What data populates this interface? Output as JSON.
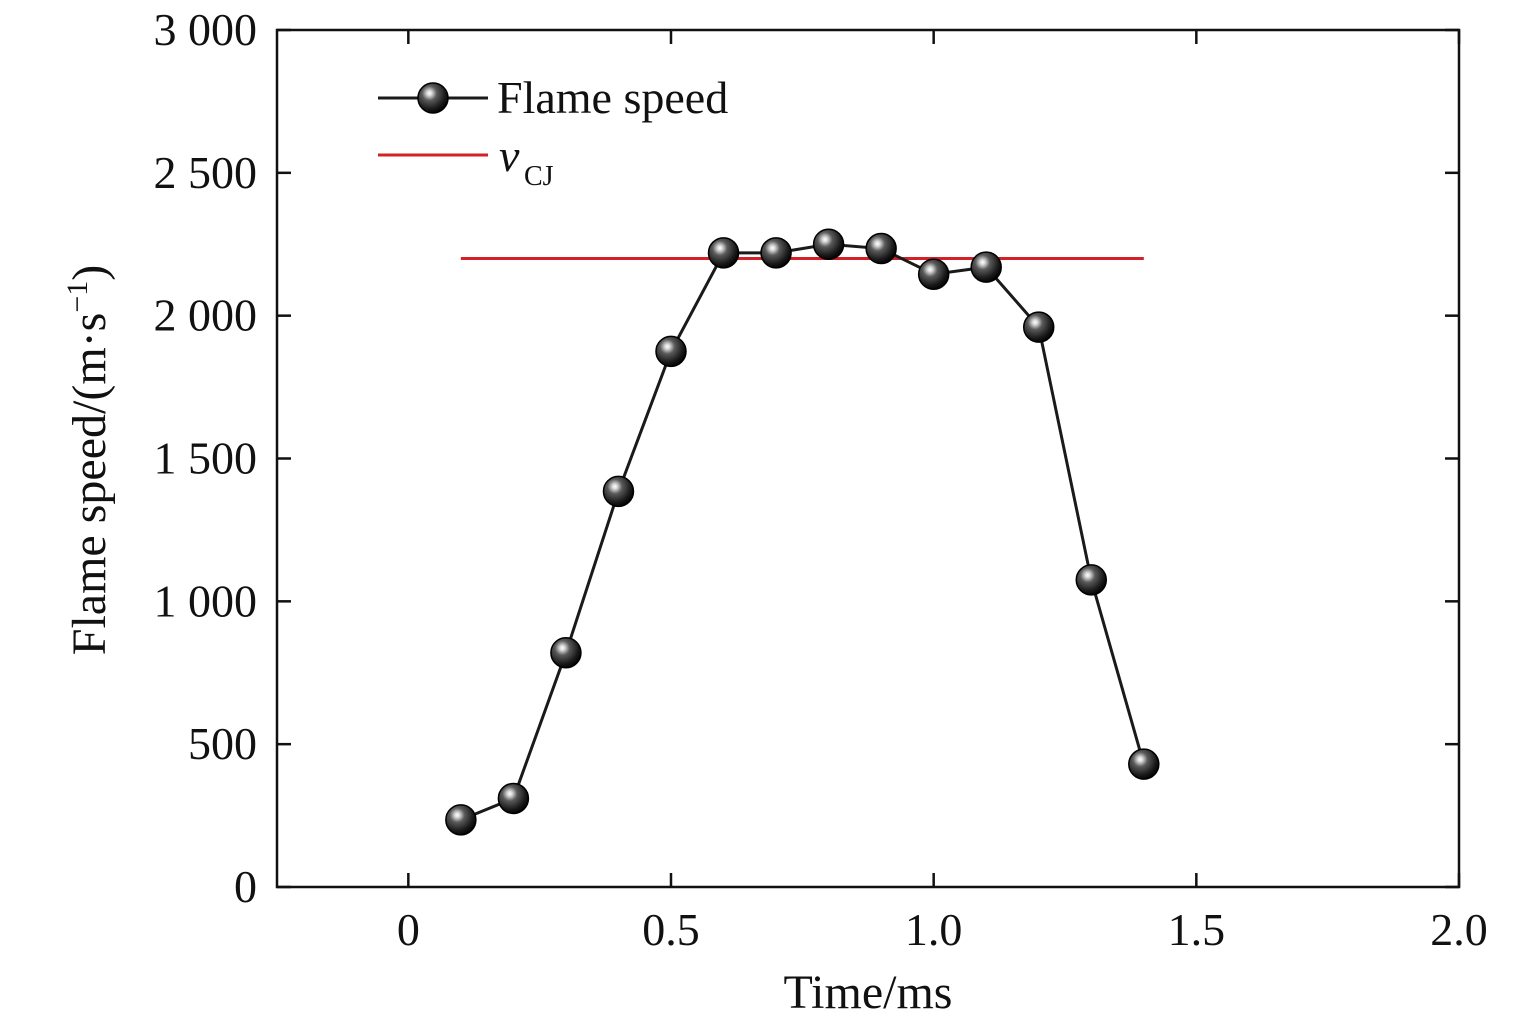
{
  "chart_data": {
    "type": "line",
    "title": "",
    "xlabel": "Time/ms",
    "ylabel": "Flame speed/(m·s",
    "ylabel_sup": "−1",
    "ylabel_close": ")",
    "xlim": [
      -0.25,
      2.0
    ],
    "ylim": [
      0,
      3000
    ],
    "xticks": [
      0,
      0.5,
      1.0,
      1.5,
      2.0
    ],
    "xtick_labels": [
      "0",
      "0.5",
      "1.0",
      "1.5",
      "2.0"
    ],
    "yticks": [
      0,
      500,
      1000,
      1500,
      2000,
      2500,
      3000
    ],
    "ytick_labels": [
      "0",
      "500",
      "1 000",
      "1 500",
      "2 000",
      "2 500",
      "3 000"
    ],
    "grid": false,
    "legend_position": "top-left",
    "series": [
      {
        "name": "Flame speed",
        "color": "#1a1a1a",
        "marker": "sphere",
        "x": [
          0.1,
          0.2,
          0.3,
          0.4,
          0.5,
          0.6,
          0.7,
          0.8,
          0.9,
          1.0,
          1.1,
          1.2,
          1.3,
          1.4
        ],
        "y": [
          235,
          310,
          820,
          1385,
          1875,
          2220,
          2220,
          2250,
          2235,
          2145,
          2170,
          1960,
          1075,
          430
        ]
      }
    ],
    "reference_line": {
      "name": "v",
      "name_sub": "CJ",
      "color": "#d42027",
      "y": 2200,
      "x_range": [
        0.1,
        1.4
      ]
    }
  }
}
